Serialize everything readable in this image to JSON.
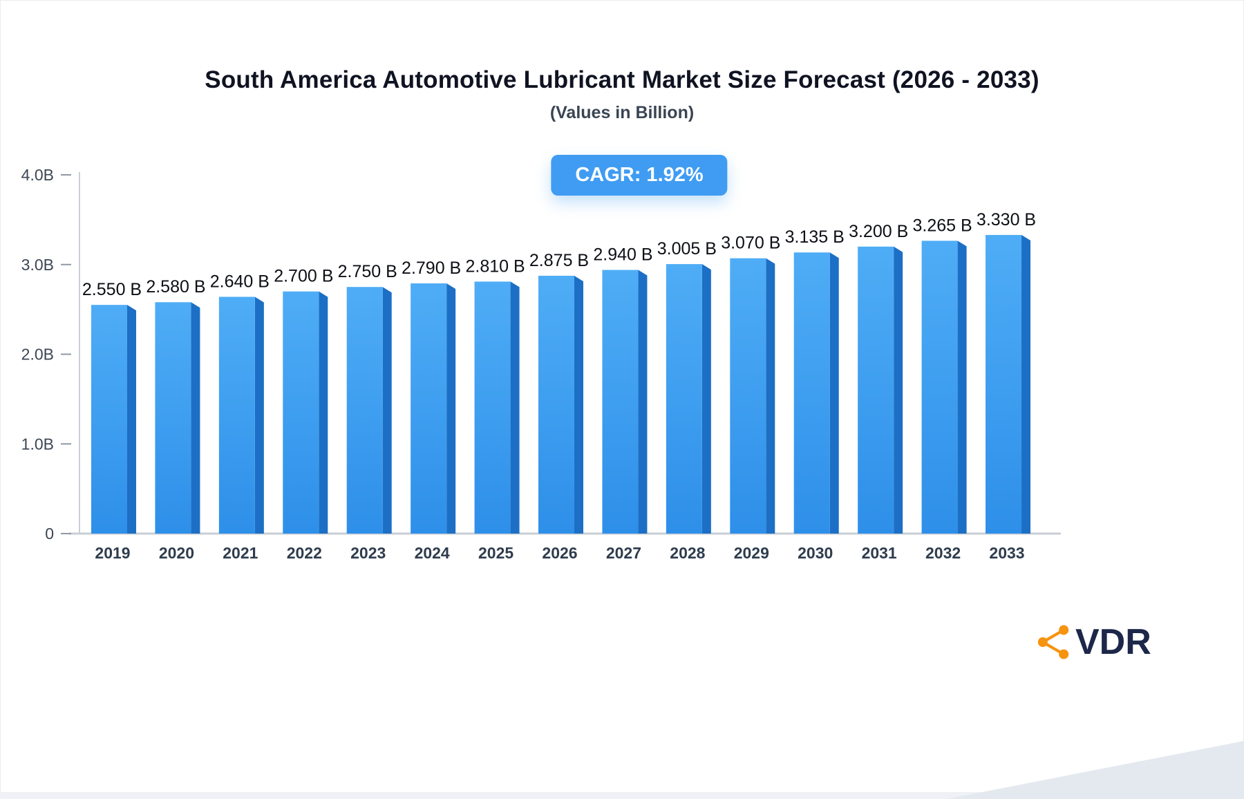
{
  "header": {
    "title": "South America Automotive Lubricant Market Size Forecast (2026 - 2033)",
    "subtitle": "(Values in Billion)"
  },
  "cagr_badge": {
    "label": "CAGR: 1.92%",
    "background": "#3f9cf2",
    "text_color": "#ffffff"
  },
  "chart_data": {
    "type": "bar",
    "title": "South America Automotive Lubricant Market Size Forecast (2026 - 2033)",
    "subtitle": "(Values in Billion)",
    "unit": "Billion",
    "categories": [
      "2019",
      "2020",
      "2021",
      "2022",
      "2023",
      "2024",
      "2025",
      "2026",
      "2027",
      "2028",
      "2029",
      "2030",
      "2031",
      "2032",
      "2033"
    ],
    "values": [
      2.55,
      2.58,
      2.64,
      2.7,
      2.75,
      2.79,
      2.81,
      2.875,
      2.94,
      3.005,
      3.07,
      3.135,
      3.2,
      3.265,
      3.33
    ],
    "value_labels": [
      "2.550 B",
      "2.580 B",
      "2.640 B",
      "2.700 B",
      "2.750 B",
      "2.790 B",
      "2.810 B",
      "2.875 B",
      "2.940 B",
      "3.005 B",
      "3.070 B",
      "3.135 B",
      "3.200 B",
      "3.265 B",
      "3.330 B"
    ],
    "xlabel": "",
    "ylabel": "",
    "ylim": [
      0,
      4
    ],
    "yticks": [
      {
        "v": 0,
        "label": "0"
      },
      {
        "v": 1,
        "label": "1.0B"
      },
      {
        "v": 2,
        "label": "2.0B"
      },
      {
        "v": 3,
        "label": "3.0B"
      },
      {
        "v": 4,
        "label": "4.0B"
      }
    ],
    "grid": false,
    "legend": false,
    "colors": {
      "bar_top": "#4fadf6",
      "bar_bottom": "#2e8fe9",
      "bar_side": "#1c6fc4",
      "axis": "#c9ced4",
      "tick": "#8f99a3",
      "value_label": "#0c0f15",
      "category_label": "#2e3c4d",
      "ytick_label": "#3c4654"
    }
  },
  "branding": {
    "logo_text": "VDR",
    "logo_text_color": "#1c2749",
    "icon_name": "share-network-icon",
    "icon_color": "#f6930f"
  }
}
